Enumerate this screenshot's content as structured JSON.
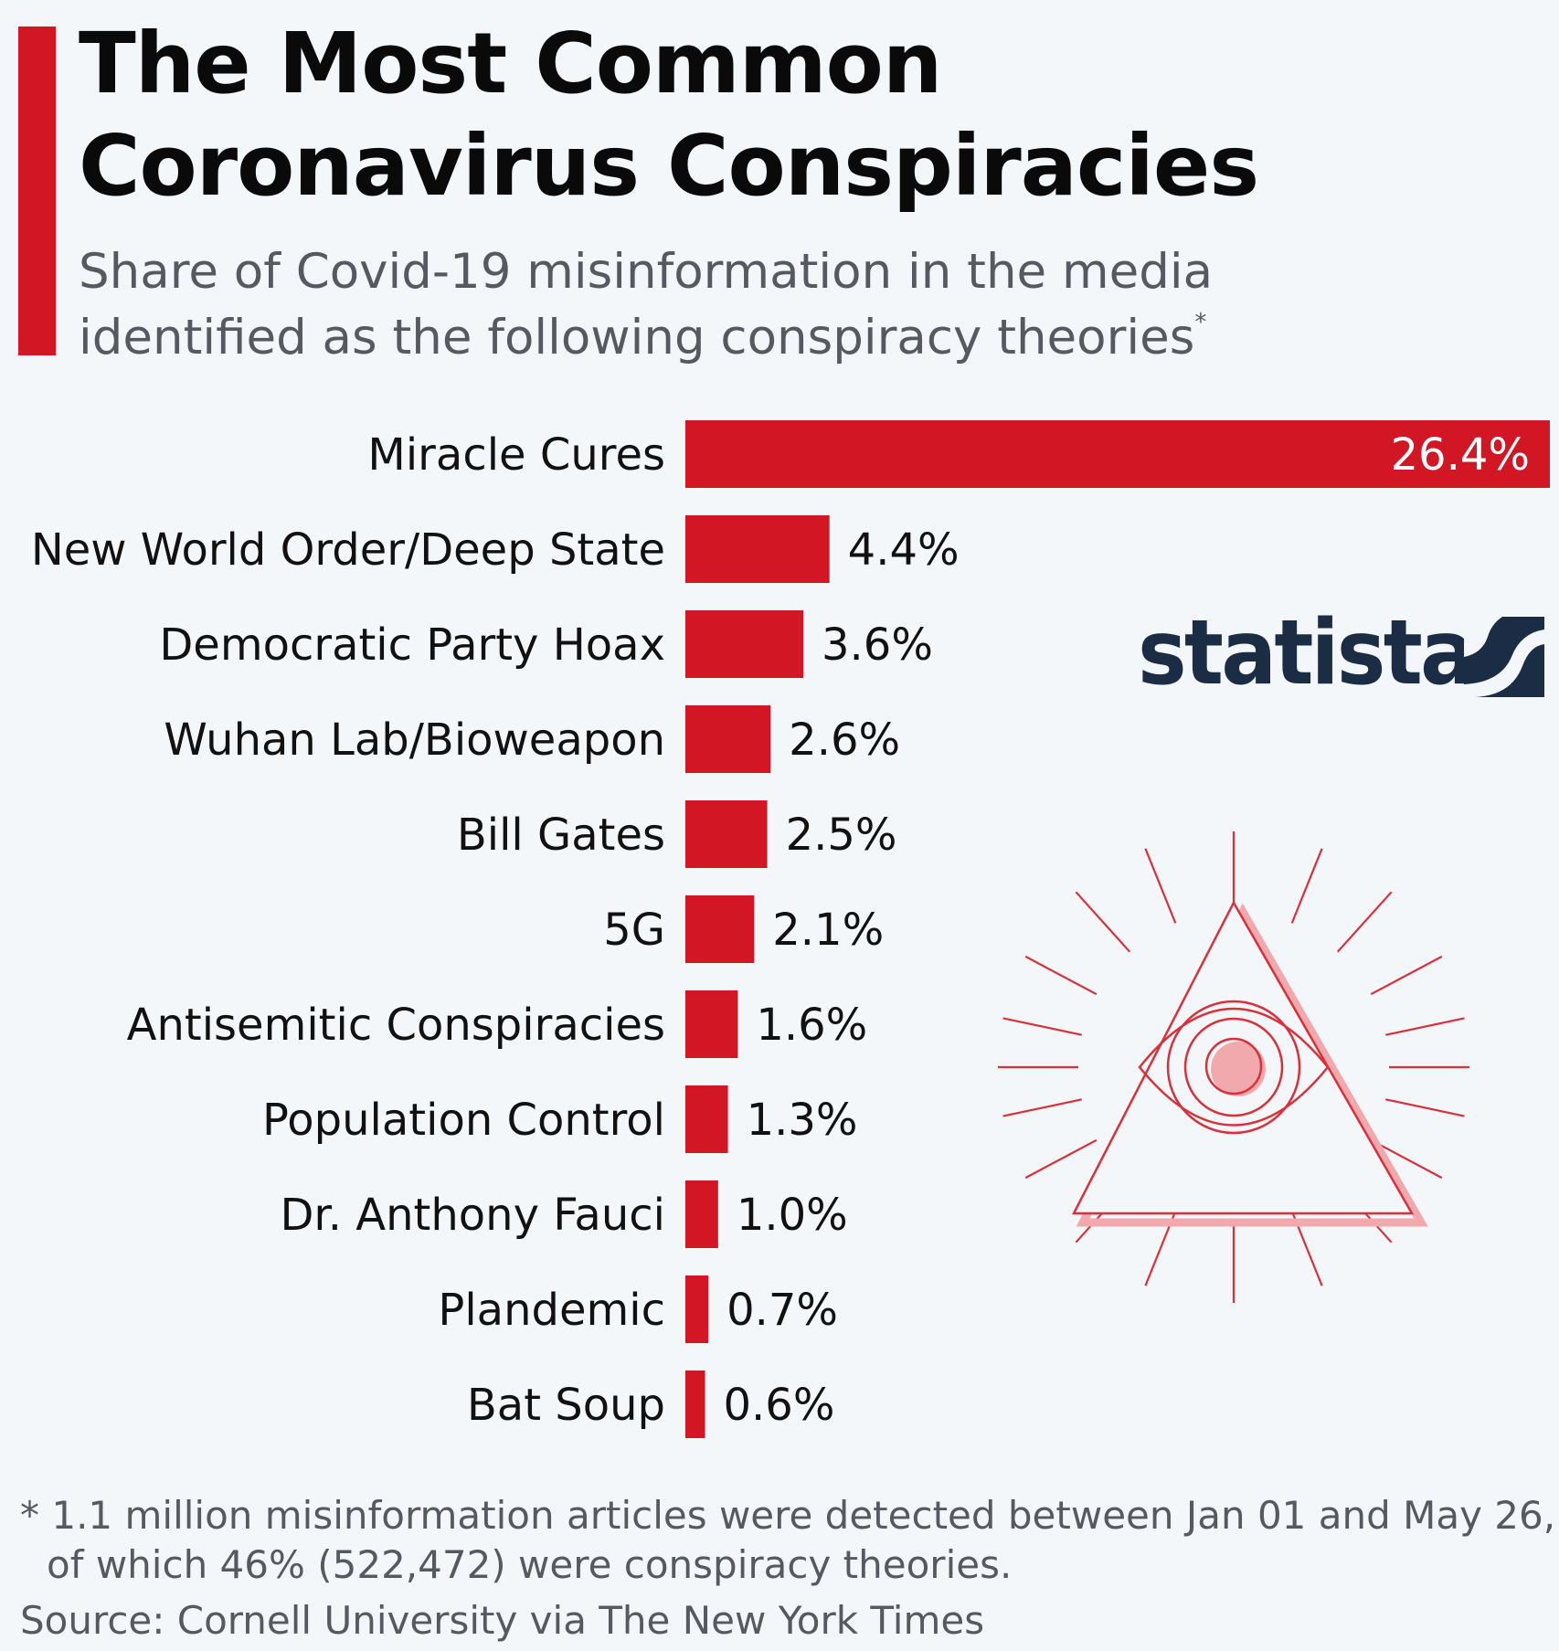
{
  "title": {
    "line1": "The Most Common",
    "line2": "Coronavirus Conspiracies"
  },
  "subtitle": {
    "line1": "Share of Covid-19 misinformation in the media",
    "line2": "identified as the following conspiracy theories",
    "marker": "*"
  },
  "chart_data": {
    "type": "bar",
    "orientation": "horizontal",
    "title": "The Most Common Coronavirus Conspiracies",
    "subtitle": "Share of Covid-19 misinformation in the media identified as the following conspiracy theories",
    "unit": "%",
    "categories": [
      "Miracle Cures",
      "New World Order/Deep State",
      "Democratic Party Hoax",
      "Wuhan Lab/Bioweapon",
      "Bill Gates",
      "5G",
      "Antisemitic Conspiracies",
      "Population Control",
      "Dr. Anthony Fauci",
      "Plandemic",
      "Bat Soup"
    ],
    "values": [
      26.4,
      4.4,
      3.6,
      2.6,
      2.5,
      2.1,
      1.6,
      1.3,
      1.0,
      0.7,
      0.6
    ],
    "value_labels": [
      "26.4%",
      "4.4%",
      "3.6%",
      "2.6%",
      "2.5%",
      "2.1%",
      "1.6%",
      "1.3%",
      "1.0%",
      "0.7%",
      "0.6%"
    ],
    "xlim": [
      0,
      26.4
    ],
    "grid": false,
    "legend": "none",
    "bar_color": "#d31623"
  },
  "logo": {
    "text": "statista",
    "color": "#1b2c45"
  },
  "illustration": {
    "icon": "all-seeing-eye-icon",
    "color": "#d9303a",
    "shadow_color": "#f2a9ae"
  },
  "footnote": {
    "line1": "* 1.1 million misinformation articles were detected between Jan 01 and May 26,",
    "line2": "of which 46% (522,472) were conspiracy theories."
  },
  "source": "Source: Cornell University via The New York Times",
  "colors": {
    "accent": "#d31623",
    "background": "#f4f7fa",
    "text": "#111111",
    "muted_text": "#555a60"
  }
}
